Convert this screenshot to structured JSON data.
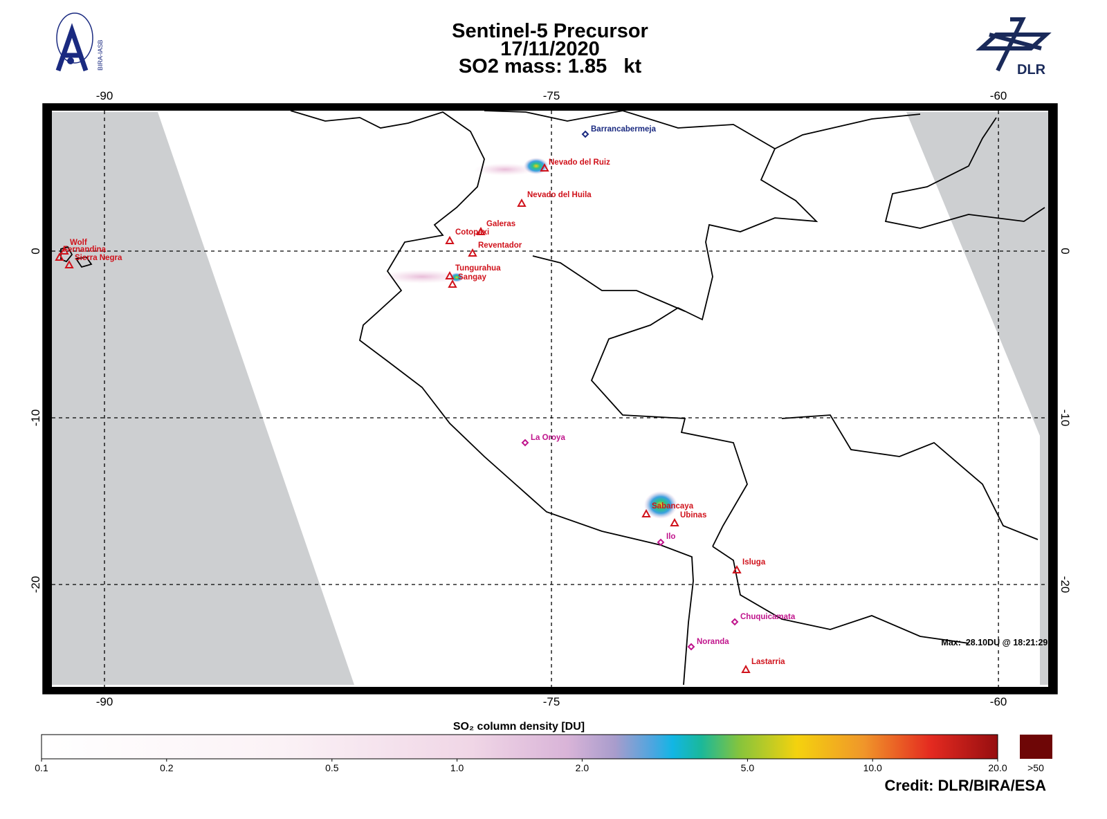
{
  "header": {
    "title": "Sentinel-5 Precursor",
    "date": "17/11/2020",
    "mass_line": "SO2 mass: 1.85   kt"
  },
  "logos": {
    "left": "BIRA-IASB",
    "right": "DLR"
  },
  "map": {
    "lon_ticks": [
      -90,
      -75,
      -60
    ],
    "lat_ticks": [
      0,
      -10,
      -20
    ],
    "volcanoes": [
      "Nevado del Ruiz",
      "Nevado del Huila",
      "Galeras",
      "Cotopaxi",
      "Reventador",
      "Tungurahua",
      "Sangay",
      "Wolf",
      "Fernandina",
      "Sierra Negra",
      "Sabancaya",
      "Ubinas",
      "Isluga",
      "Lastarria"
    ],
    "emitters": [
      "La Oroya",
      "Ilo",
      "Chuquicamata",
      "Noranda"
    ],
    "refineries": [
      "Barrancabermeja"
    ],
    "max_label": "Max:  28.10DU @ 18:21:29h"
  },
  "colorbar": {
    "title": "SO₂ column density [DU]",
    "ticks": [
      0.1,
      0.2,
      0.5,
      {
        "value": 1,
        "label": "1.0"
      },
      {
        "value": 2,
        "label": "2.0"
      },
      {
        "value": 5,
        "label": "5.0"
      },
      {
        "value": 10,
        "label": "10.0"
      },
      {
        "value": 20,
        "label": "20.0"
      }
    ],
    "overflow_label": ">50"
  },
  "credit": "Credit: DLR/BIRA/ESA"
}
